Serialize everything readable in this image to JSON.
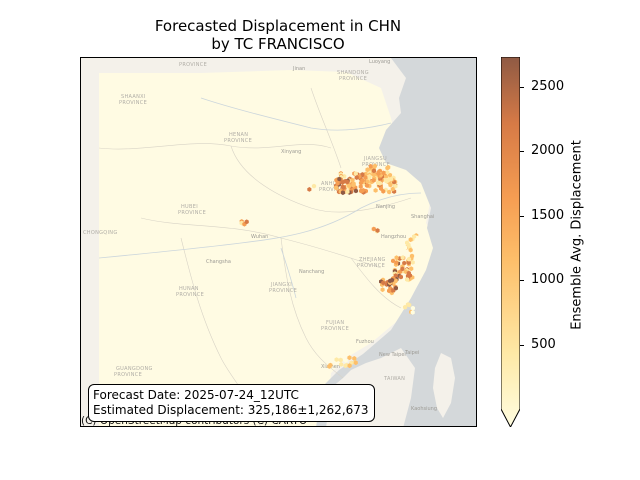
{
  "title": {
    "line1": "Forecasted Displacement in CHN",
    "line2": "by TC FRANCISCO"
  },
  "info": {
    "forecast_date": "Forecast Date: 2025-07-24_12UTC",
    "estimated_displacement": "Estimated Displacement: 325,186±1,262,673"
  },
  "attribution": "(C) OpenStreetMap contributors (C) CARTO",
  "colorbar": {
    "label": "Ensemble Avg. Displacement",
    "ticks": [
      "500",
      "1000",
      "1500",
      "2000",
      "2500"
    ],
    "tick_values": [
      500,
      1000,
      1500,
      2000,
      2500
    ],
    "min": 0,
    "max": 2730,
    "extend": "min",
    "colormap_colors": [
      "#fffde0",
      "#fee9a6",
      "#fdbf6a",
      "#f59d52",
      "#d67a46",
      "#8f5a44"
    ]
  },
  "map_labels": {
    "provinces": [
      "SHAANXI",
      "PROVINCE",
      "HENAN",
      "PROVINCE",
      "ANHUI",
      "PROVINCE",
      "JIANGSU",
      "PROVINCE",
      "HUBEI",
      "PROVINCE",
      "ZHEJIANG",
      "PROVINCE",
      "JIANGXI",
      "PROVINCE",
      "HUNAN",
      "PROVINCE",
      "FUJIAN",
      "PROVINCE",
      "GUANGDONG",
      "PROVINCE",
      "TAIWAN",
      "CHONGQING",
      "SHANDONG",
      "PROVINCE",
      "PROVINCE"
    ],
    "cities": [
      "Luoyang",
      "Xinyang",
      "Jinan",
      "Wuhan",
      "Nanjing",
      "Shanghai",
      "Hangzhou",
      "Changsha",
      "Nanchang",
      "Fuzhou",
      "Xiamen",
      "New Taipei",
      "Taipei",
      "Kaohsiung"
    ]
  },
  "colors": {
    "land": "#f4f1ea",
    "sea": "#d4d8da",
    "study_area": "#fffbe3"
  }
}
